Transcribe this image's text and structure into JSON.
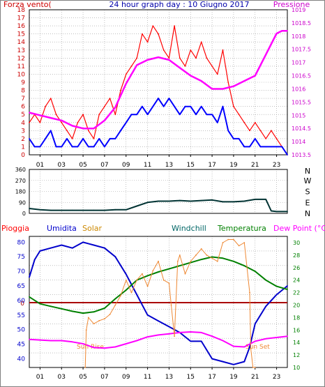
{
  "page_title": "24 hour graph day : 10 Giugno 2017",
  "colors": {
    "wind_gust": "#ff0000",
    "wind_avg": "#0000ff",
    "pressure": "#ff00ff",
    "direction": "#003333",
    "humidity": "#0000cc",
    "solar": "#ee8833",
    "temperature": "#008000",
    "dewpoint": "#ff00ff",
    "rain": "#aa0000",
    "grid": "#999999",
    "frame": "#000000",
    "lbl_rain": "#ff0000",
    "lbl_humidity": "#0000cc",
    "lbl_solar": "#cc8800",
    "lbl_windchill": "#006666",
    "lbl_temperature": "#008000",
    "lbl_dewpoint": "#ff00ff"
  },
  "chart_data": [
    {
      "type": "line",
      "name": "wind-pressure",
      "title": "24 hour graph day : 10 Giugno 2017",
      "left_label": "Forza vento(",
      "right_label": "Pressione",
      "xlim": [
        0,
        24
      ],
      "x_ticks": [
        "01",
        "03",
        "05",
        "07",
        "09",
        "11",
        "13",
        "15",
        "17",
        "19",
        "21",
        "23"
      ],
      "ylim_left": [
        0,
        18
      ],
      "y_ticks_left": [
        "0",
        "1",
        "2",
        "3",
        "4",
        "5",
        "6",
        "7",
        "8",
        "9",
        "10",
        "11",
        "12",
        "13",
        "14",
        "15",
        "16",
        "17",
        "18"
      ],
      "ylim_right": [
        1013.5,
        1019
      ],
      "y_ticks_right": [
        "1013.5",
        "1014",
        "1014.5",
        "1015",
        "1015.5",
        "1016",
        "1016.5",
        "1017",
        "1017.5",
        "1018",
        "1018.5",
        "1019"
      ],
      "grid": true,
      "series": [
        {
          "name": "Gust",
          "axis": "left",
          "x": [
            0,
            0.5,
            1,
            1.5,
            2,
            2.5,
            3,
            3.5,
            4,
            4.5,
            5,
            5.5,
            6,
            6.5,
            7,
            7.5,
            8,
            8.5,
            9,
            9.5,
            10,
            10.5,
            11,
            11.5,
            12,
            12.5,
            13,
            13.5,
            14,
            14.5,
            15,
            15.5,
            16,
            16.5,
            17,
            17.5,
            18,
            18.5,
            19,
            19.5,
            20,
            20.5,
            21,
            21.5,
            22,
            22.5,
            23,
            23.5,
            24
          ],
          "values": [
            4,
            5,
            4,
            6,
            7,
            5,
            4,
            3,
            2,
            4,
            5,
            3,
            2,
            5,
            6,
            7,
            5,
            8,
            10,
            11,
            12,
            15,
            14,
            16,
            15,
            13,
            12,
            16,
            12,
            11,
            13,
            12,
            14,
            12,
            11,
            10,
            13,
            9,
            6,
            5,
            4,
            3,
            4,
            3,
            2,
            3,
            2,
            1,
            0
          ]
        },
        {
          "name": "Avg",
          "axis": "left",
          "x": [
            0,
            0.5,
            1,
            1.5,
            2,
            2.5,
            3,
            3.5,
            4,
            4.5,
            5,
            5.5,
            6,
            6.5,
            7,
            7.5,
            8,
            8.5,
            9,
            9.5,
            10,
            10.5,
            11,
            11.5,
            12,
            12.5,
            13,
            13.5,
            14,
            14.5,
            15,
            15.5,
            16,
            16.5,
            17,
            17.5,
            18,
            18.5,
            19,
            19.5,
            20,
            20.5,
            21,
            21.5,
            22,
            22.5,
            23,
            23.5,
            24
          ],
          "values": [
            2,
            1,
            1,
            2,
            3,
            1,
            1,
            2,
            1,
            1,
            2,
            1,
            1,
            2,
            1,
            2,
            2,
            3,
            4,
            5,
            5,
            6,
            5,
            6,
            7,
            6,
            7,
            6,
            5,
            6,
            6,
            5,
            6,
            5,
            5,
            4,
            6,
            3,
            2,
            2,
            1,
            1,
            2,
            1,
            1,
            1,
            1,
            1,
            0
          ]
        },
        {
          "name": "Pressione",
          "axis": "right",
          "x": [
            0,
            1,
            2,
            3,
            4,
            5,
            6,
            7,
            8,
            9,
            10,
            11,
            12,
            13,
            14,
            15,
            16,
            17,
            18,
            19,
            20,
            21,
            22,
            23,
            23.5,
            24
          ],
          "values": [
            1015.1,
            1015.0,
            1014.9,
            1014.8,
            1014.6,
            1014.5,
            1014.5,
            1014.8,
            1015.3,
            1016.2,
            1016.9,
            1017.1,
            1017.2,
            1017.1,
            1016.8,
            1016.5,
            1016.3,
            1016.0,
            1016.0,
            1016.1,
            1016.3,
            1016.5,
            1017.3,
            1018.1,
            1018.2,
            1018.2
          ]
        }
      ]
    },
    {
      "type": "line",
      "name": "wind-direction",
      "xlim": [
        0,
        24
      ],
      "ylim": [
        0,
        360
      ],
      "y_ticks_left": [
        "0",
        "90",
        "180",
        "270",
        "360"
      ],
      "y_ticks_right": [
        "N",
        "E",
        "S",
        "W",
        "N"
      ],
      "right_label_top": "N",
      "grid": true,
      "series": [
        {
          "name": "Direction",
          "x": [
            0,
            1,
            2,
            3,
            4,
            5,
            6,
            7,
            8,
            9,
            10,
            11,
            12,
            13,
            14,
            15,
            16,
            17,
            18,
            19,
            20,
            21,
            22,
            22.5,
            23,
            24
          ],
          "values": [
            40,
            30,
            25,
            25,
            25,
            25,
            25,
            25,
            30,
            30,
            60,
            90,
            100,
            100,
            105,
            100,
            105,
            110,
            95,
            95,
            100,
            115,
            115,
            20,
            15,
            15
          ]
        }
      ]
    },
    {
      "type": "line",
      "name": "temperature-humidity",
      "labels": {
        "rain": "Pioggia",
        "humidity": "Umidita",
        "solar": "Solar",
        "windchill": "Windchill",
        "temperature": "Temperatura",
        "dewpoint": "Dew Point (°C)"
      },
      "annotations": {
        "sunrise": "Sun Rise",
        "sunset": "Sun Set"
      },
      "rain_marker": "0",
      "xlim": [
        0,
        24
      ],
      "x_ticks": [
        "01",
        "03",
        "05",
        "07",
        "09",
        "11",
        "13",
        "15",
        "17",
        "19",
        "21",
        "23"
      ],
      "ylim_left": [
        37,
        82
      ],
      "y_ticks_left": [
        "40",
        "45",
        "50",
        "55",
        "60",
        "65",
        "70",
        "75",
        "80"
      ],
      "ylim_right": [
        10,
        31
      ],
      "y_ticks_right": [
        "10",
        "12",
        "14",
        "16",
        "18",
        "20",
        "22",
        "24",
        "26",
        "28",
        "30"
      ],
      "grid": true,
      "series": [
        {
          "name": "Umidita",
          "axis": "left",
          "x": [
            0,
            0.5,
            1,
            2,
            3,
            4,
            5,
            6,
            7,
            8,
            9,
            10,
            11,
            12,
            13,
            14,
            15,
            16,
            17,
            18,
            19,
            20,
            20.5,
            21,
            22,
            23,
            24
          ],
          "values": [
            68,
            74,
            77,
            78,
            79,
            78,
            80,
            79,
            78,
            75,
            69,
            62,
            55,
            53,
            51,
            49,
            46,
            46,
            40,
            39,
            38,
            39,
            44,
            52,
            58,
            62,
            65
          ]
        },
        {
          "name": "Temperatura",
          "axis": "right",
          "x": [
            0,
            1,
            2,
            3,
            4,
            5,
            6,
            7,
            8,
            9,
            10,
            11,
            12,
            13,
            14,
            15,
            16,
            17,
            18,
            19,
            20,
            21,
            22,
            23,
            24
          ],
          "values": [
            21.3,
            20.2,
            19.8,
            19.4,
            19.0,
            18.7,
            18.9,
            19.5,
            21.0,
            22.4,
            24.0,
            24.7,
            25.3,
            25.8,
            26.3,
            26.8,
            27.3,
            27.7,
            27.5,
            27.0,
            26.3,
            25.4,
            24.0,
            23.0,
            22.5
          ]
        },
        {
          "name": "Dew Point",
          "axis": "right",
          "x": [
            0,
            1,
            2,
            3,
            4,
            5,
            6,
            7,
            8,
            9,
            10,
            11,
            12,
            13,
            14,
            15,
            16,
            17,
            18,
            19,
            20,
            21,
            22,
            23,
            24
          ],
          "values": [
            14.5,
            14.4,
            14.3,
            14.3,
            14.1,
            13.8,
            13.2,
            13.1,
            13.3,
            13.8,
            14.3,
            14.9,
            15.2,
            15.4,
            15.6,
            15.7,
            15.6,
            15.0,
            14.3,
            13.4,
            13.3,
            14.2,
            14.6,
            14.8,
            15.0
          ]
        },
        {
          "name": "Solar",
          "axis": "right",
          "x": [
            5.2,
            5.3,
            5.5,
            6,
            6.5,
            7,
            7.5,
            8,
            8.5,
            9,
            9.5,
            10,
            10.5,
            11,
            11.5,
            12,
            12.5,
            13,
            13.2,
            13.5,
            13.8,
            14,
            14.5,
            15,
            15.5,
            16,
            16.5,
            17,
            17.5,
            18,
            18.5,
            19,
            19.5,
            20,
            20.5,
            20.6,
            20.8,
            21
          ],
          "values": [
            10,
            16,
            18,
            17,
            17.5,
            17.8,
            18.5,
            20,
            21.5,
            24,
            22,
            24,
            25,
            23,
            25.5,
            27,
            24,
            23.5,
            20,
            15,
            27,
            28,
            25,
            27,
            28,
            29,
            28,
            27.5,
            27,
            30,
            30.5,
            30.5,
            29.5,
            30,
            22,
            13,
            10,
            10
          ]
        }
      ]
    }
  ]
}
